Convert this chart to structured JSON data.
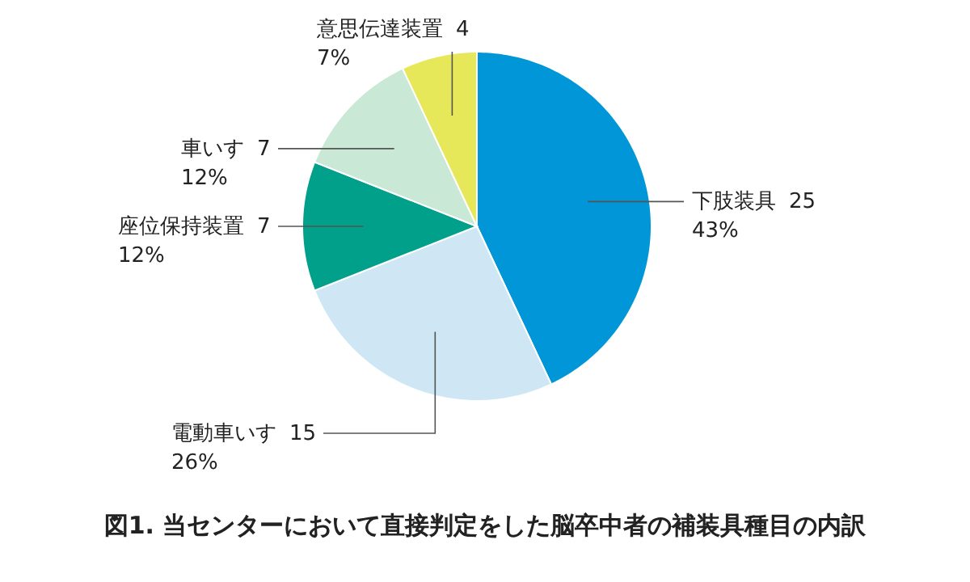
{
  "chart_data": {
    "type": "pie",
    "title": "図1. 当センターにおいて直接判定をした脳卒中者の補装具種目の内訳",
    "categories": [
      "下肢装具",
      "電動車いす",
      "座位保持装置",
      "車いす",
      "意思伝達装置"
    ],
    "values": [
      43,
      26,
      12,
      12,
      7
    ],
    "value_labels": [
      "25\n43%",
      "15\n26%",
      "7\n12%",
      "7\n12%",
      "4\n7%"
    ],
    "colors": [
      "#0096d8",
      "#cfe6f5",
      "#00a08a",
      "#c9e8d5",
      "#e6e85a"
    ]
  }
}
